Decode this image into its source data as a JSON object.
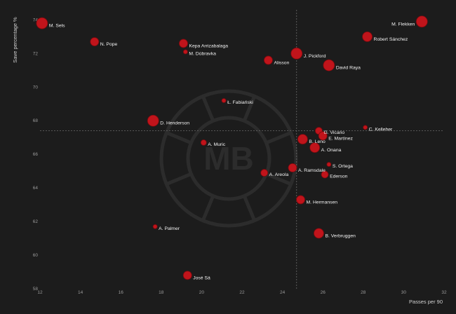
{
  "chart_data": {
    "type": "scatter",
    "xlabel": "Passes per 90",
    "ylabel": "Save percentage %",
    "xlim": [
      12,
      32
    ],
    "ylim": [
      58,
      74.6
    ],
    "x_ticks": [
      12,
      14,
      16,
      18,
      20,
      22,
      24,
      26,
      28,
      30,
      32
    ],
    "y_ticks": [
      58,
      60,
      62,
      64,
      66,
      68,
      70,
      72,
      74
    ],
    "reference_lines": {
      "x": 24.7,
      "y": 67.4
    },
    "watermark": "MB",
    "grid": false,
    "colors": {
      "background": "#1c1c1c",
      "point_fill": "#c0141b",
      "point_stroke": "#7a0a0e",
      "reference_line": "#6a6a6a"
    },
    "points": [
      {
        "name": "M. Sels",
        "x": 12.1,
        "y": 73.8,
        "size": 8
      },
      {
        "name": "M. Flekken",
        "x": 30.9,
        "y": 73.9,
        "size": 8
      },
      {
        "name": "Robert Sánchez",
        "x": 28.2,
        "y": 73.0,
        "size": 7
      },
      {
        "name": "N. Pope",
        "x": 14.7,
        "y": 72.7,
        "size": 6
      },
      {
        "name": "Kepa Arrizabalaga",
        "x": 19.1,
        "y": 72.6,
        "size": 6
      },
      {
        "name": "M. Dúbravka",
        "x": 19.2,
        "y": 72.1,
        "size": 3
      },
      {
        "name": "J. Pickford",
        "x": 24.7,
        "y": 72.0,
        "size": 8
      },
      {
        "name": "Alisson",
        "x": 23.3,
        "y": 71.6,
        "size": 6
      },
      {
        "name": "David Raya",
        "x": 26.3,
        "y": 71.3,
        "size": 8
      },
      {
        "name": "Ł. Fabiański",
        "x": 21.1,
        "y": 69.2,
        "size": 3
      },
      {
        "name": "D. Henderson",
        "x": 17.6,
        "y": 68.0,
        "size": 8
      },
      {
        "name": "C. Kelleher",
        "x": 28.1,
        "y": 67.6,
        "size": 3
      },
      {
        "name": "G. Vicario",
        "x": 25.8,
        "y": 67.4,
        "size": 5
      },
      {
        "name": "E. Martínez",
        "x": 26.0,
        "y": 67.1,
        "size": 6
      },
      {
        "name": "B. Leno",
        "x": 25.0,
        "y": 66.9,
        "size": 7
      },
      {
        "name": "A. Muric",
        "x": 20.1,
        "y": 66.7,
        "size": 4
      },
      {
        "name": "A. Onana",
        "x": 25.6,
        "y": 66.4,
        "size": 7
      },
      {
        "name": "S. Ortega",
        "x": 26.3,
        "y": 65.4,
        "size": 3
      },
      {
        "name": "A. Ramsdale",
        "x": 24.5,
        "y": 65.2,
        "size": 6
      },
      {
        "name": "A. Areola",
        "x": 23.1,
        "y": 64.9,
        "size": 5
      },
      {
        "name": "Ederson",
        "x": 26.1,
        "y": 64.8,
        "size": 5
      },
      {
        "name": "M. Hermansen",
        "x": 24.9,
        "y": 63.3,
        "size": 6
      },
      {
        "name": "A. Palmer",
        "x": 17.7,
        "y": 61.7,
        "size": 3
      },
      {
        "name": "B. Verbruggen",
        "x": 25.8,
        "y": 61.3,
        "size": 7
      },
      {
        "name": "José Sá",
        "x": 19.3,
        "y": 58.8,
        "size": 6
      }
    ]
  }
}
